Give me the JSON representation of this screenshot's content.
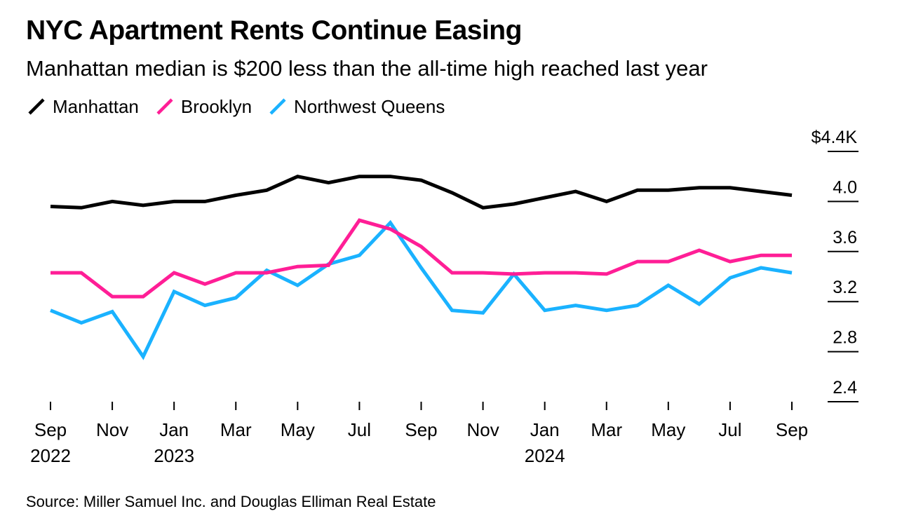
{
  "chart_data": {
    "type": "line",
    "title": "NYC Apartment Rents Continue Easing",
    "subtitle": "Manhattan median is $200 less than the all-time high reached last year",
    "xlabel": "",
    "ylabel": "",
    "y_unit_prefix": "$",
    "y_unit_suffix": "K",
    "ylim": [
      2.4,
      4.4
    ],
    "yticks": [
      2.4,
      2.8,
      3.2,
      3.6,
      4.0,
      4.4
    ],
    "ytick_labels": [
      "2.4",
      "2.8",
      "3.2",
      "3.6",
      "4.0",
      "$4.4K"
    ],
    "x": [
      "Sep 2022",
      "Oct 2022",
      "Nov 2022",
      "Dec 2022",
      "Jan 2023",
      "Feb 2023",
      "Mar 2023",
      "Apr 2023",
      "May 2023",
      "Jun 2023",
      "Jul 2023",
      "Aug 2023",
      "Sep 2023",
      "Oct 2023",
      "Nov 2023",
      "Dec 2023",
      "Jan 2024",
      "Feb 2024",
      "Mar 2024",
      "Apr 2024",
      "May 2024",
      "Jun 2024",
      "Jul 2024",
      "Aug 2024",
      "Sep 2024"
    ],
    "xticks": [
      {
        "index": 0,
        "month": "Sep",
        "year": "2022"
      },
      {
        "index": 2,
        "month": "Nov",
        "year": ""
      },
      {
        "index": 4,
        "month": "Jan",
        "year": "2023"
      },
      {
        "index": 6,
        "month": "Mar",
        "year": ""
      },
      {
        "index": 8,
        "month": "May",
        "year": ""
      },
      {
        "index": 10,
        "month": "Jul",
        "year": ""
      },
      {
        "index": 12,
        "month": "Sep",
        "year": ""
      },
      {
        "index": 14,
        "month": "Nov",
        "year": ""
      },
      {
        "index": 16,
        "month": "Jan",
        "year": "2024"
      },
      {
        "index": 18,
        "month": "Mar",
        "year": ""
      },
      {
        "index": 20,
        "month": "May",
        "year": ""
      },
      {
        "index": 22,
        "month": "Jul",
        "year": ""
      },
      {
        "index": 24,
        "month": "Sep",
        "year": ""
      }
    ],
    "series": [
      {
        "name": "Manhattan",
        "color": "#000000",
        "values": [
          3.96,
          3.95,
          4.0,
          3.97,
          4.0,
          4.0,
          4.05,
          4.09,
          4.2,
          4.15,
          4.2,
          4.2,
          4.17,
          4.07,
          3.95,
          3.98,
          4.03,
          4.08,
          4.0,
          4.09,
          4.09,
          4.11,
          4.11,
          4.08,
          4.05
        ]
      },
      {
        "name": "Brooklyn",
        "color": "#ff1e96",
        "values": [
          3.43,
          3.43,
          3.24,
          3.24,
          3.43,
          3.34,
          3.43,
          3.43,
          3.48,
          3.49,
          3.85,
          3.78,
          3.64,
          3.43,
          3.43,
          3.42,
          3.43,
          3.43,
          3.42,
          3.52,
          3.52,
          3.61,
          3.52,
          3.57,
          3.57
        ]
      },
      {
        "name": "Northwest Queens",
        "color": "#1ab2ff",
        "values": [
          3.13,
          3.03,
          3.12,
          2.76,
          3.28,
          3.17,
          3.23,
          3.45,
          3.33,
          3.5,
          3.57,
          3.83,
          3.47,
          3.13,
          3.11,
          3.42,
          3.13,
          3.17,
          3.13,
          3.17,
          3.33,
          3.18,
          3.39,
          3.47,
          3.43
        ]
      }
    ]
  },
  "source": "Source: Miller Samuel Inc. and Douglas Elliman Real Estate"
}
